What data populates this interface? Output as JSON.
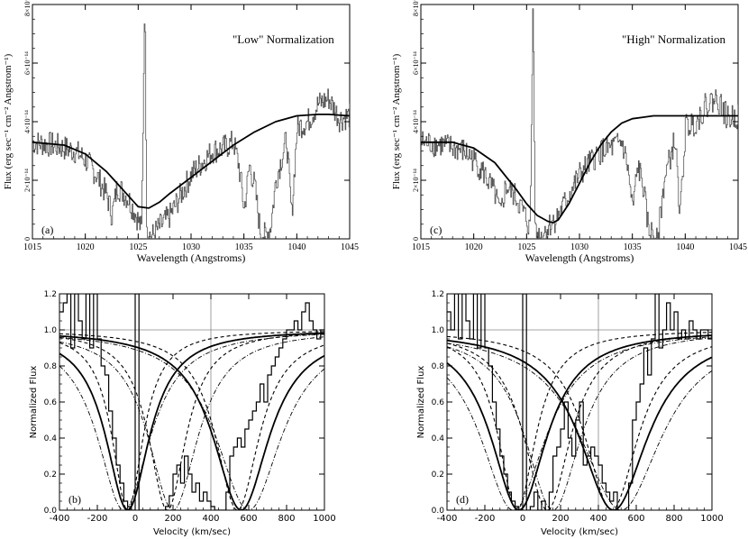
{
  "chart_data": [
    {
      "id": "a",
      "type": "line",
      "panel_label": "(a)",
      "annotation": "\"Low\" Normalization",
      "xlabel": "Wavelength (Angstroms)",
      "ylabel": "Flux (erg sec⁻¹ cm⁻² Angstrom⁻¹)",
      "xlim": [
        1015,
        1045
      ],
      "ylim": [
        0,
        8e-14
      ],
      "x_ticks": [
        1015,
        1020,
        1025,
        1030,
        1035,
        1040,
        1045
      ],
      "y_ticks": [
        "0",
        "2×10⁻¹⁴",
        "4×10⁻¹⁴",
        "6×10⁻¹⁴",
        "8×10⁻¹⁴"
      ],
      "y_tick_values": [
        0,
        2e-14,
        4e-14,
        6e-14,
        8e-14
      ],
      "series": [
        {
          "style": "noisy-spectrum",
          "x": [
            1015,
            1017,
            1019,
            1020,
            1021,
            1022,
            1022.5,
            1023,
            1024,
            1024.8,
            1025.3,
            1025.6,
            1025.8,
            1026.3,
            1027,
            1028,
            1029,
            1030,
            1031,
            1032,
            1033,
            1034,
            1034.5,
            1035,
            1035.5,
            1036,
            1036.5,
            1037,
            1037.5,
            1038,
            1039,
            1039.5,
            1040,
            1041,
            1042,
            1043,
            1044,
            1045
          ],
          "y": [
            3.3e-14,
            3.2e-14,
            3e-14,
            2.7e-14,
            2.2e-14,
            1.5e-14,
            8e-15,
            1.8e-14,
            1.4e-14,
            8e-15,
            3e-15,
            8.5e-14,
            2e-15,
            1e-15,
            4e-15,
            8e-15,
            1.5e-14,
            2.2e-14,
            2.6e-14,
            3e-14,
            3.1e-14,
            3.3e-14,
            2.5e-14,
            1e-14,
            2.5e-14,
            1.8e-14,
            3e-15,
            1e-15,
            4e-15,
            2e-14,
            3.4e-14,
            8e-15,
            3.8e-14,
            4e-14,
            4.6e-14,
            4.8e-14,
            4.1e-14,
            4.2e-14
          ]
        },
        {
          "style": "fit",
          "x": [
            1015,
            1018,
            1020,
            1022,
            1024,
            1025,
            1026,
            1027,
            1028,
            1030,
            1032,
            1034,
            1036,
            1038,
            1040,
            1042,
            1043,
            1045
          ],
          "y": [
            3.3e-14,
            3.2e-14,
            2.9e-14,
            2.3e-14,
            1.5e-14,
            1.1e-14,
            1.05e-14,
            1.25e-14,
            1.55e-14,
            2.1e-14,
            2.65e-14,
            3.2e-14,
            3.65e-14,
            4e-14,
            4.2e-14,
            4.25e-14,
            4.25e-14,
            4.2e-14
          ]
        }
      ]
    },
    {
      "id": "c",
      "type": "line",
      "panel_label": "(c)",
      "annotation": "\"High\" Normalization",
      "xlabel": "Wavelength (Angstroms)",
      "ylabel": "Flux (erg sec⁻¹ cm⁻² Angstrom⁻¹)",
      "xlim": [
        1015,
        1045
      ],
      "ylim": [
        0,
        8e-14
      ],
      "x_ticks": [
        1015,
        1020,
        1025,
        1030,
        1035,
        1040,
        1045
      ],
      "y_ticks": [
        "0",
        "2×10⁻¹⁴",
        "4×10⁻¹⁴",
        "6×10⁻¹⁴",
        "8×10⁻¹⁴"
      ],
      "y_tick_values": [
        0,
        2e-14,
        4e-14,
        6e-14,
        8e-14
      ],
      "series": [
        {
          "style": "noisy-spectrum",
          "x": [
            1015,
            1017,
            1019,
            1020,
            1021,
            1022,
            1022.5,
            1023,
            1024,
            1024.8,
            1025.3,
            1025.6,
            1025.8,
            1026.3,
            1027,
            1028,
            1029,
            1030,
            1031,
            1032,
            1033,
            1034,
            1034.5,
            1035,
            1035.5,
            1036,
            1036.5,
            1037,
            1037.5,
            1038,
            1039,
            1039.5,
            1040,
            1041,
            1042,
            1043,
            1044,
            1045
          ],
          "y": [
            3.3e-14,
            3.2e-14,
            3e-14,
            2.7e-14,
            2.2e-14,
            1.5e-14,
            8e-15,
            1.8e-14,
            1.4e-14,
            8e-15,
            3e-15,
            8.5e-14,
            2e-15,
            1e-15,
            4e-15,
            8e-15,
            1.5e-14,
            2.2e-14,
            2.6e-14,
            3e-14,
            3.1e-14,
            3.3e-14,
            2.5e-14,
            1e-14,
            2.5e-14,
            1.8e-14,
            3e-15,
            1e-15,
            4e-15,
            2e-14,
            3.4e-14,
            8e-15,
            3.8e-14,
            4e-14,
            4.6e-14,
            4.8e-14,
            4.1e-14,
            4.2e-14
          ]
        },
        {
          "style": "fit",
          "x": [
            1015,
            1018,
            1020,
            1022,
            1024,
            1025,
            1026,
            1027,
            1027.5,
            1028,
            1029,
            1030,
            1031,
            1032,
            1033,
            1034,
            1035,
            1036,
            1037,
            1038,
            1040,
            1045
          ],
          "y": [
            3.3e-14,
            3.3e-14,
            3.1e-14,
            2.6e-14,
            1.7e-14,
            1.2e-14,
            8e-15,
            6e-15,
            5.5e-15,
            6.5e-15,
            1.2e-14,
            1.9e-14,
            2.6e-14,
            3.2e-14,
            3.65e-14,
            3.95e-14,
            4.1e-14,
            4.15e-14,
            4.2e-14,
            4.2e-14,
            4.2e-14,
            4.2e-14
          ]
        }
      ]
    },
    {
      "id": "b",
      "type": "line",
      "panel_label": "(b)",
      "xlabel": "Velocity (km/sec)",
      "ylabel": "Normalized Flux",
      "xlim": [
        -400,
        1000
      ],
      "ylim": [
        0,
        1.2
      ],
      "x_ticks": [
        -400,
        -200,
        0,
        200,
        400,
        600,
        800,
        1000
      ],
      "y_ticks": [
        "0.0",
        "0.2",
        "0.4",
        "0.6",
        "0.8",
        "1.0",
        "1.2"
      ],
      "y_tick_values": [
        0,
        0.2,
        0.4,
        0.6,
        0.8,
        1.0,
        1.2
      ],
      "reference_lines": {
        "y": 1.0,
        "x": 400
      },
      "series": [
        {
          "style": "histogram",
          "x": [
            -400,
            -380,
            -360,
            -340,
            -320,
            -300,
            -280,
            -260,
            -240,
            -220,
            -200,
            -180,
            -160,
            -140,
            -120,
            -100,
            -80,
            -60,
            -40,
            -20,
            0,
            20,
            40,
            60,
            80,
            100,
            120,
            140,
            160,
            180,
            200,
            220,
            240,
            260,
            280,
            300,
            320,
            340,
            360,
            380,
            400,
            420,
            440,
            460,
            480,
            500,
            520,
            540,
            560,
            580,
            600,
            620,
            640,
            660,
            680,
            700,
            720,
            740,
            760,
            780,
            800,
            820,
            840,
            860,
            880,
            900,
            920,
            940,
            960,
            980,
            1000
          ],
          "y": [
            1.1,
            1.15,
            1.2,
            0.9,
            1.2,
            1.05,
            0.95,
            1.2,
            0.9,
            1.2,
            0.95,
            0.8,
            0.75,
            0.55,
            0.4,
            0.25,
            0.15,
            0.05,
            0.02,
            0.0,
            1.2,
            0.0,
            0.0,
            0.0,
            0.0,
            0.0,
            0.0,
            0.0,
            0.02,
            0.08,
            0.2,
            0.25,
            0.15,
            0.3,
            0.2,
            0.1,
            0.15,
            0.05,
            0.1,
            0.05,
            0.02,
            0.0,
            0.0,
            0.0,
            0.1,
            0.3,
            0.35,
            0.4,
            0.35,
            0.45,
            0.5,
            0.55,
            0.6,
            0.7,
            0.6,
            0.75,
            0.8,
            0.85,
            0.9,
            0.95,
            1.0,
            1.0,
            1.05,
            1.0,
            1.1,
            1.15,
            1.05,
            1.0,
            0.95,
            1.0,
            1.0
          ]
        },
        {
          "style": "solid",
          "center": -40,
          "width": 140
        },
        {
          "style": "solid",
          "center": 560,
          "width": 180
        },
        {
          "style": "dashed",
          "center": -40,
          "width": 100
        },
        {
          "style": "dashed",
          "center": 170,
          "width": 120
        },
        {
          "style": "dashed",
          "center": 540,
          "width": 140
        },
        {
          "style": "dashdot",
          "center": -60,
          "width": 170
        },
        {
          "style": "dashdot",
          "center": 200,
          "width": 160
        },
        {
          "style": "dashdot",
          "center": 600,
          "width": 210
        }
      ]
    },
    {
      "id": "d",
      "type": "line",
      "panel_label": "(d)",
      "xlabel": "Velocity (km/sec)",
      "ylabel": "Normalized Flux",
      "xlim": [
        -400,
        1000
      ],
      "ylim": [
        0,
        1.2
      ],
      "x_ticks": [
        -400,
        -200,
        0,
        200,
        400,
        600,
        800,
        1000
      ],
      "y_ticks": [
        "0.0",
        "0.2",
        "0.4",
        "0.6",
        "0.8",
        "1.0",
        "1.2"
      ],
      "y_tick_values": [
        0,
        0.2,
        0.4,
        0.6,
        0.8,
        1.0,
        1.2
      ],
      "reference_lines": {
        "y": 1.0,
        "x": 400
      },
      "series": [
        {
          "style": "histogram",
          "x": [
            -400,
            -380,
            -360,
            -340,
            -320,
            -300,
            -280,
            -260,
            -240,
            -220,
            -200,
            -180,
            -160,
            -140,
            -120,
            -100,
            -80,
            -60,
            -40,
            -20,
            0,
            20,
            40,
            60,
            80,
            100,
            120,
            140,
            160,
            180,
            200,
            220,
            240,
            260,
            280,
            300,
            320,
            340,
            360,
            380,
            400,
            420,
            440,
            460,
            480,
            500,
            520,
            540,
            560,
            580,
            600,
            620,
            640,
            660,
            680,
            700,
            720,
            740,
            760,
            780,
            800,
            820,
            840,
            860,
            880,
            900,
            920,
            940,
            960,
            980,
            1000
          ],
          "y": [
            1.1,
            1.0,
            1.2,
            0.95,
            1.2,
            1.05,
            0.95,
            1.2,
            0.9,
            1.2,
            0.9,
            0.8,
            0.6,
            0.45,
            0.3,
            0.2,
            0.1,
            0.05,
            0.02,
            0.0,
            1.2,
            0.0,
            0.02,
            0.1,
            0.0,
            0.05,
            0.0,
            0.1,
            0.3,
            0.35,
            0.45,
            0.6,
            0.4,
            0.3,
            0.5,
            0.6,
            0.25,
            0.3,
            0.35,
            0.3,
            0.25,
            0.15,
            0.1,
            0.05,
            0.1,
            0.0,
            0.0,
            0.0,
            0.15,
            0.5,
            0.6,
            0.7,
            0.9,
            0.75,
            0.95,
            1.2,
            0.9,
            1.0,
            1.15,
            1.0,
            1.1,
            0.95,
            1.0,
            0.95,
            1.05,
            1.0,
            0.95,
            1.0,
            1.0,
            0.95,
            1.0
          ]
        },
        {
          "style": "solid",
          "center": -20,
          "width": 180
        },
        {
          "style": "solid",
          "center": 480,
          "width": 220
        },
        {
          "style": "dashed",
          "center": -30,
          "width": 120
        },
        {
          "style": "dashed",
          "center": 130,
          "width": 150
        },
        {
          "style": "dashed",
          "center": 470,
          "width": 170
        },
        {
          "style": "dashdot",
          "center": -50,
          "width": 210
        },
        {
          "style": "dashdot",
          "center": 160,
          "width": 180
        },
        {
          "style": "dashdot",
          "center": 520,
          "width": 260
        }
      ]
    }
  ]
}
